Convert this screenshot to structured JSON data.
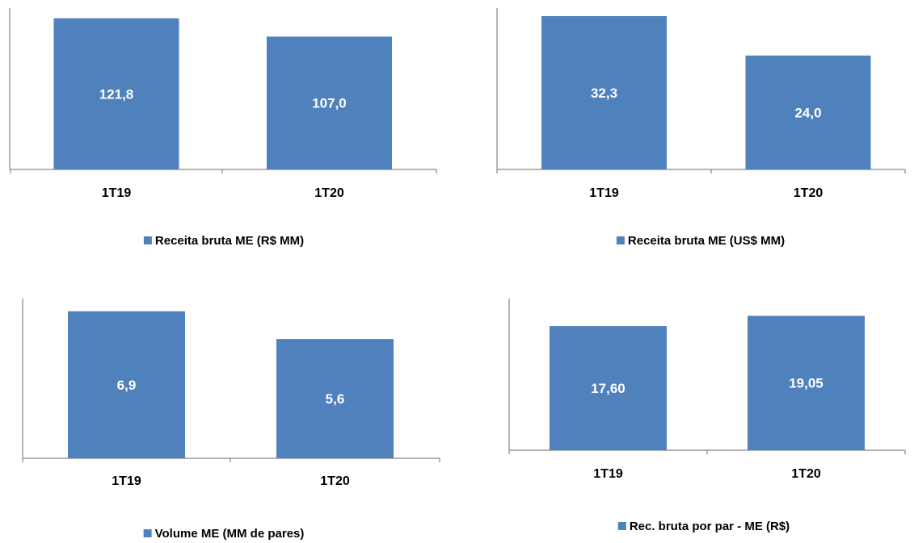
{
  "colors": {
    "bar": "#4f81bd",
    "axis": "#868686",
    "label": "#ffffff"
  },
  "chart_data": [
    {
      "type": "bar",
      "categories": [
        "1T19",
        "1T20"
      ],
      "series": [
        {
          "name": "Receita bruta ME (R$ MM)",
          "values": [
            121.8,
            107.0
          ],
          "labels": [
            "121,8",
            "107,0"
          ]
        }
      ],
      "ylim": [
        0,
        130
      ],
      "legend": "bottom",
      "grid": false
    },
    {
      "type": "bar",
      "categories": [
        "1T19",
        "1T20"
      ],
      "series": [
        {
          "name": "Receita bruta ME (US$ MM)",
          "values": [
            32.3,
            24.0
          ],
          "labels": [
            "32,3",
            "24,0"
          ]
        }
      ],
      "ylim": [
        0,
        34
      ],
      "legend": "bottom",
      "grid": false
    },
    {
      "type": "bar",
      "categories": [
        "1T19",
        "1T20"
      ],
      "series": [
        {
          "name": "Volume ME (MM de pares)",
          "values": [
            6.9,
            5.6
          ],
          "labels": [
            "6,9",
            "5,6"
          ]
        }
      ],
      "ylim": [
        0,
        7.5
      ],
      "legend": "bottom",
      "grid": false
    },
    {
      "type": "bar",
      "categories": [
        "1T19",
        "1T20"
      ],
      "series": [
        {
          "name": "Rec. bruta por par - ME (R$)",
          "values": [
            17.6,
            19.05
          ],
          "labels": [
            "17,60",
            "19,05"
          ]
        }
      ],
      "ylim": [
        0,
        21.5
      ],
      "legend": "bottom",
      "grid": false
    }
  ]
}
